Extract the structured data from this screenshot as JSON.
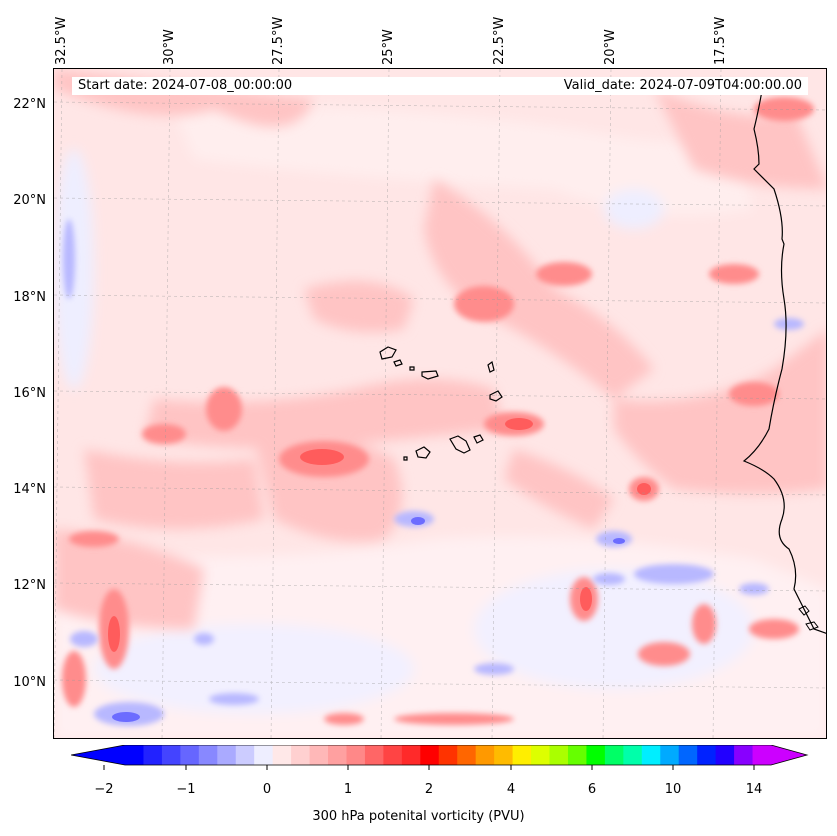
{
  "map": {
    "start_date": "Start date: 2024-07-08_00:00:00",
    "valid_date": "Valid_date: 2024-07-09T04:00:00.00",
    "longitude_labels": [
      "32.5°W",
      "30°W",
      "27.5°W",
      "25°W",
      "22.5°W",
      "20°W",
      "17.5°W"
    ],
    "latitude_labels": [
      "22°N",
      "20°N",
      "18°N",
      "16°N",
      "14°N",
      "12°N",
      "10°N"
    ],
    "field": "300 hPa potential vorticity",
    "extent": {
      "lon_min": -33.0,
      "lon_max": -15.5,
      "lat_min": 8.9,
      "lat_max": 22.8
    },
    "gridlines": true
  },
  "colorbar": {
    "label": "300 hPa potenital vorticity (PVU)",
    "tick_labels": [
      "−2",
      "−1",
      "0",
      "1",
      "2",
      "4",
      "6",
      "10",
      "14"
    ],
    "extend": "both",
    "colors": [
      "#0000ff",
      "#2222ff",
      "#4444ff",
      "#6666ff",
      "#8888ff",
      "#aaaaff",
      "#ccccff",
      "#eeeeff",
      "#ffe8e8",
      "#ffd0d0",
      "#ffb8b8",
      "#ffa0a0",
      "#ff8888",
      "#ff6666",
      "#ff4444",
      "#ff2a2a",
      "#ff0000",
      "#ff3300",
      "#ff6600",
      "#ff9900",
      "#ffbb00",
      "#ffee00",
      "#ddff00",
      "#aaff00",
      "#66ff00",
      "#00ff00",
      "#00ff66",
      "#00ffaa",
      "#00eeff",
      "#00aaff",
      "#0066ff",
      "#0022ff",
      "#2200ff",
      "#8800ff",
      "#cc00ff"
    ],
    "low_extend_color": "#0000ff",
    "high_extend_color": "#cc00ff"
  }
}
